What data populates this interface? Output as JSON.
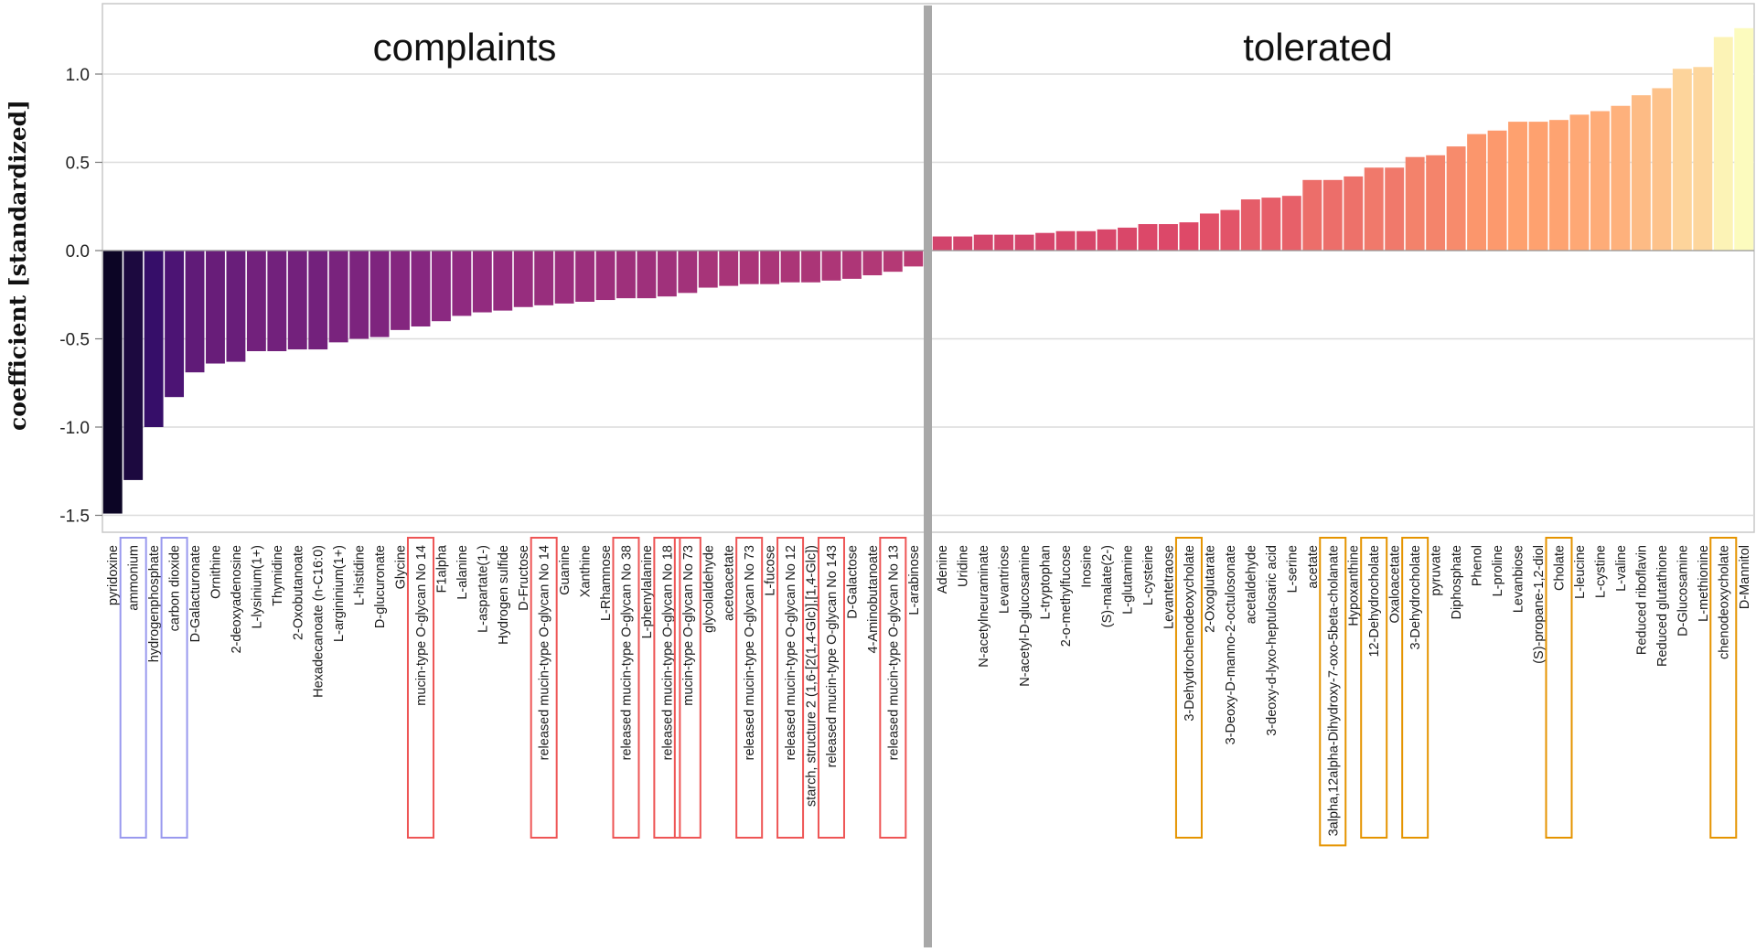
{
  "chart_data": {
    "type": "bar",
    "title": "",
    "xlabel": "",
    "ylabel": "coefficient [standardized]",
    "ylim": [
      -1.6,
      1.35
    ],
    "yticks": [
      1.0,
      0.5,
      0.0,
      -0.5,
      -1.0,
      -1.5
    ],
    "ytick_labels": [
      "1.0",
      "0.5",
      "0.0",
      "-0.5",
      "-1.0",
      "-1.5"
    ],
    "grid": true,
    "colormap": [
      "#0b0524",
      "#3b0f70",
      "#8c2981",
      "#de4968",
      "#fe9f6d",
      "#fcfdbf"
    ],
    "highlight_colors": {
      "blue": "#9999ee",
      "red": "#ee5555",
      "orange": "#e59400"
    },
    "panels": [
      {
        "label": "complaints",
        "categories": [
          "pyridoxine",
          "ammonium",
          "hydrogenphosphate",
          "carbon dioxide",
          "D-Galacturonate",
          "Ornithine",
          "2-deoxyadenosine",
          "L-lysinium(1+)",
          "Thymidine",
          "2-Oxobutanoate",
          "Hexadecanoate (n-C16:0)",
          "L-argininium(1+)",
          "L-histidine",
          "D-glucuronate",
          "Glycine",
          "mucin-type O-glycan No 14",
          "F1alpha",
          "L-alanine",
          "L-aspartate(1-)",
          "Hydrogen sulfide",
          "D-Fructose",
          "released mucin-type O-glycan No 14",
          "Guanine",
          "Xanthine",
          "L-Rhamnose",
          "released mucin-type O-glycan No 38",
          "L-phenylalanine",
          "released mucin-type O-glycan No 18",
          "mucin-type O-glycan No 73",
          "glycolaldehyde",
          "acetoacetate",
          "released mucin-type O-glycan No 73",
          "L-fucose",
          "released mucin-type O-glycan No 12",
          "starch, structure 2 (1,6-[2(1,4-Glc)],[1,4-Glc])",
          "released mucin-type O-glycan No 143",
          "D-Galactose",
          "4-Aminobutanoate",
          "released mucin-type O-glycan No 13",
          "L-arabinose"
        ],
        "values": [
          -1.49,
          -1.3,
          -1.0,
          -0.83,
          -0.69,
          -0.64,
          -0.63,
          -0.57,
          -0.57,
          -0.56,
          -0.56,
          -0.52,
          -0.5,
          -0.49,
          -0.45,
          -0.43,
          -0.4,
          -0.37,
          -0.35,
          -0.34,
          -0.32,
          -0.31,
          -0.3,
          -0.29,
          -0.28,
          -0.27,
          -0.27,
          -0.26,
          -0.24,
          -0.21,
          -0.2,
          -0.19,
          -0.19,
          -0.18,
          -0.18,
          -0.17,
          -0.16,
          -0.14,
          -0.12,
          -0.09
        ],
        "highlights": [
          {
            "category": "ammonium",
            "color": "blue"
          },
          {
            "category": "carbon dioxide",
            "color": "blue"
          },
          {
            "category": "mucin-type O-glycan No 14",
            "color": "red"
          },
          {
            "category": "released mucin-type O-glycan No 14",
            "color": "red"
          },
          {
            "category": "released mucin-type O-glycan No 38",
            "color": "red"
          },
          {
            "category": "released mucin-type O-glycan No 18",
            "color": "red"
          },
          {
            "category": "mucin-type O-glycan No 73",
            "color": "red"
          },
          {
            "category": "released mucin-type O-glycan No 73",
            "color": "red"
          },
          {
            "category": "released mucin-type O-glycan No 12",
            "color": "red"
          },
          {
            "category": "released mucin-type O-glycan No 143",
            "color": "red"
          },
          {
            "category": "released mucin-type O-glycan No 13",
            "color": "red"
          }
        ]
      },
      {
        "label": "tolerated",
        "categories": [
          "Adenine",
          "Uridine",
          "N-acetylneuraminate",
          "Levantriose",
          "N-acetyl-D-glucosamine",
          "L-tryptophan",
          "2-o-methylfucose",
          "Inosine",
          "(S)-malate(2-)",
          "L-glutamine",
          "L-cysteine",
          "Levantetraose",
          "3-Dehydrochenodeoxycholate",
          "2-Oxoglutarate",
          "3-Deoxy-D-manno-2-octulosonate",
          "acetaldehyde",
          "3-deoxy-d-lyxo-heptulosaric acid",
          "L-serine",
          "acetate",
          "3alpha,12alpha-Dihydroxy-7-oxo-5beta-cholanate",
          "Hypoxanthine",
          "12-Dehydrocholate",
          "Oxaloacetate",
          "3-Dehydrocholate",
          "pyruvate",
          "Diphosphate",
          "Phenol",
          "L-proline",
          "Levanbiose",
          "(S)-propane-1,2-diol",
          "Cholate",
          "L-leucine",
          "L-cystine",
          "L-valine",
          "Reduced riboflavin",
          "Reduced glutathione",
          "D-Glucosamine",
          "L-methionine",
          "chenodeoxycholate",
          "D-Mannitol"
        ],
        "values": [
          0.08,
          0.08,
          0.09,
          0.09,
          0.09,
          0.1,
          0.11,
          0.11,
          0.12,
          0.13,
          0.15,
          0.15,
          0.16,
          0.21,
          0.23,
          0.29,
          0.3,
          0.31,
          0.4,
          0.4,
          0.42,
          0.47,
          0.47,
          0.53,
          0.54,
          0.59,
          0.66,
          0.68,
          0.73,
          0.73,
          0.74,
          0.77,
          0.79,
          0.82,
          0.88,
          0.92,
          1.03,
          1.04,
          1.21,
          1.26
        ],
        "highlights": [
          {
            "category": "3-Dehydrochenodeoxycholate",
            "color": "orange"
          },
          {
            "category": "3alpha,12alpha-Dihydroxy-7-oxo-5beta-cholanate",
            "color": "orange"
          },
          {
            "category": "12-Dehydrocholate",
            "color": "orange"
          },
          {
            "category": "3-Dehydrocholate",
            "color": "orange"
          },
          {
            "category": "Cholate",
            "color": "orange"
          },
          {
            "category": "chenodeoxycholate",
            "color": "orange"
          }
        ]
      }
    ]
  }
}
